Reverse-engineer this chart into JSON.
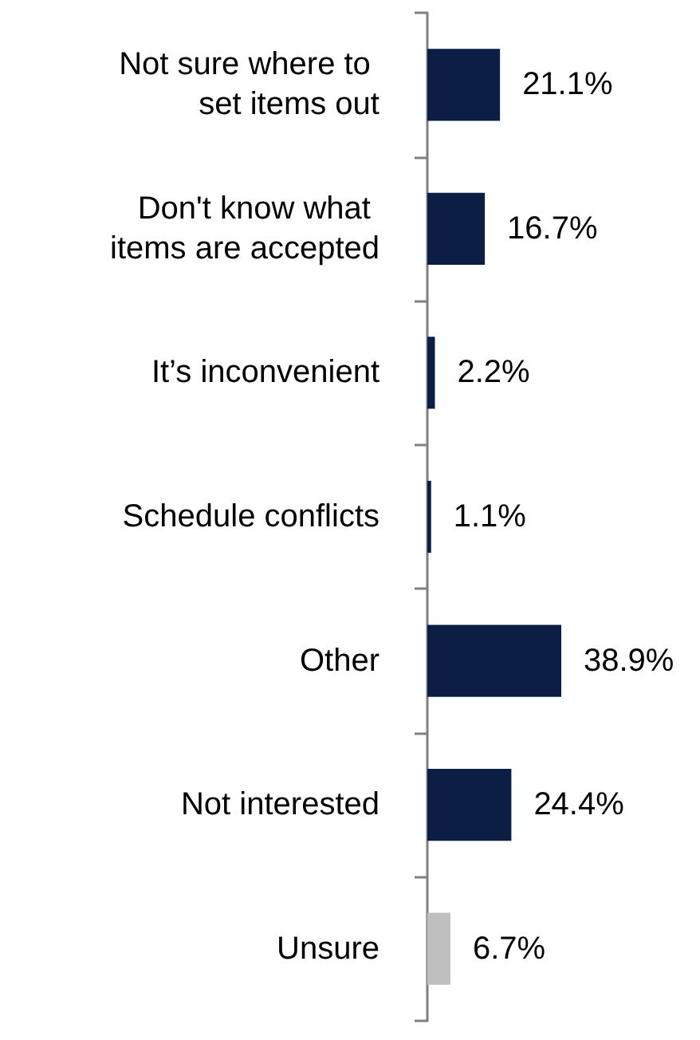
{
  "chart_data": {
    "type": "bar",
    "orientation": "horizontal",
    "categories": [
      "Not sure where to set items out",
      "Don't know what items are accepted",
      "It’s inconvenient",
      "Schedule conflicts",
      "Other",
      "Not interested",
      "Unsure"
    ],
    "values": [
      21.1,
      16.7,
      2.2,
      1.1,
      38.9,
      24.4,
      6.7
    ],
    "value_labels": [
      "21.1%",
      "16.7%",
      "2.2%",
      "1.1%",
      "38.9%",
      "24.4%",
      "6.7%"
    ],
    "colors": [
      "#0c1e44",
      "#0c1e44",
      "#0c1e44",
      "#0c1e44",
      "#0c1e44",
      "#0c1e44",
      "#bfbfbf"
    ],
    "grid": false
  }
}
